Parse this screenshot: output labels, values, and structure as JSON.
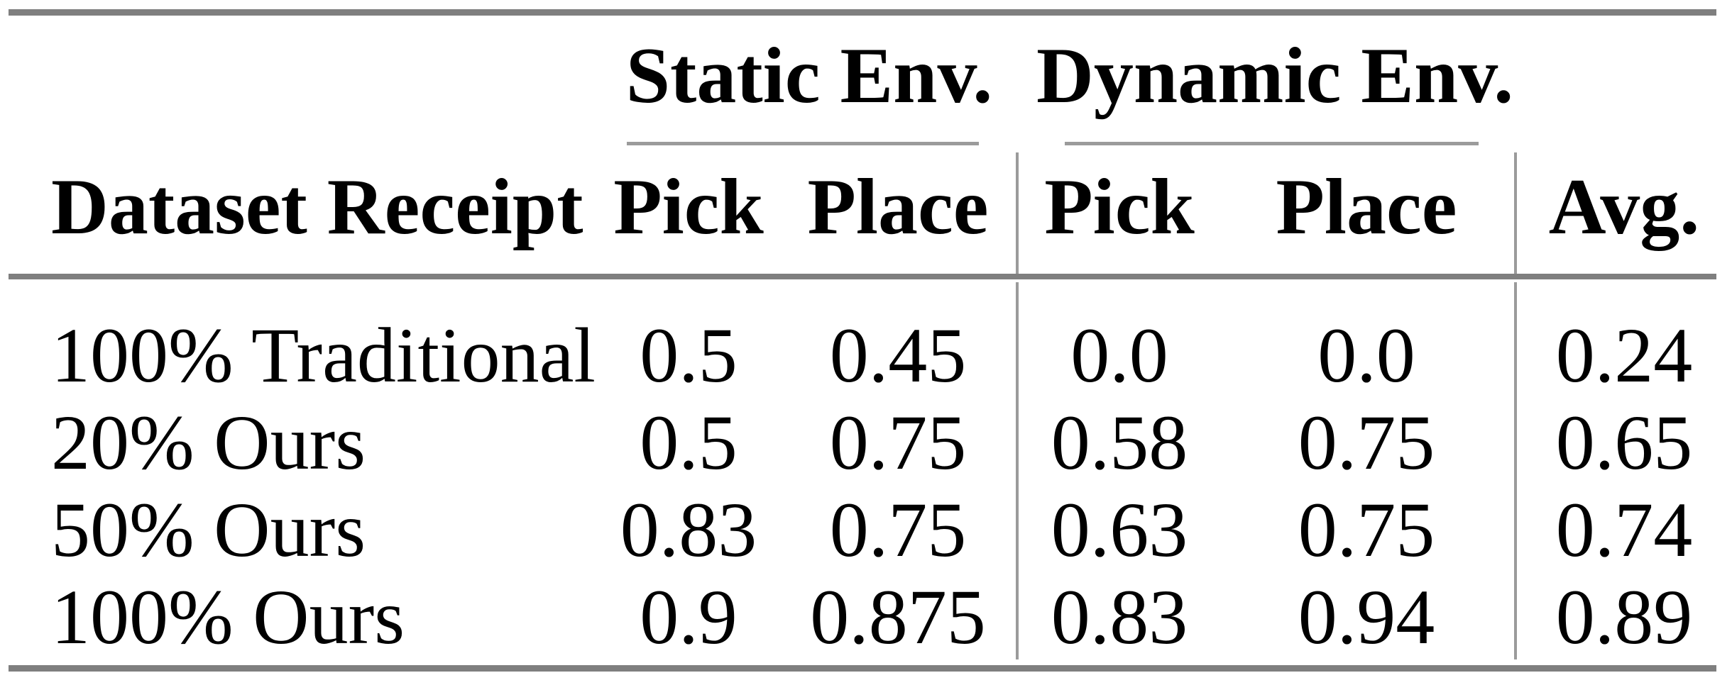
{
  "table": {
    "group_headers": [
      {
        "label": "Static Env."
      },
      {
        "label": "Dynamic Env."
      }
    ],
    "column_headers": {
      "dataset": "Dataset Receipt",
      "static_pick": "Pick",
      "static_place": "Place",
      "dynamic_pick": "Pick",
      "dynamic_place": "Place",
      "avg": "Avg."
    },
    "rows": [
      {
        "label": "100% Traditional",
        "values": [
          "0.5",
          "0.45",
          "0.0",
          "0.0",
          "0.24"
        ]
      },
      {
        "label": "20% Ours",
        "values": [
          "0.5",
          "0.75",
          "0.58",
          "0.75",
          "0.65"
        ]
      },
      {
        "label": "50% Ours",
        "values": [
          "0.83",
          "0.75",
          "0.63",
          "0.75",
          "0.74"
        ]
      },
      {
        "label": "100% Ours",
        "values": [
          "0.9",
          "0.875",
          "0.83",
          "0.94",
          "0.89"
        ]
      }
    ],
    "colors": {
      "rule_thick": "#7f7f7f",
      "rule_thin": "#9b9b9b",
      "text": "#000000",
      "background": "#ffffff"
    }
  }
}
